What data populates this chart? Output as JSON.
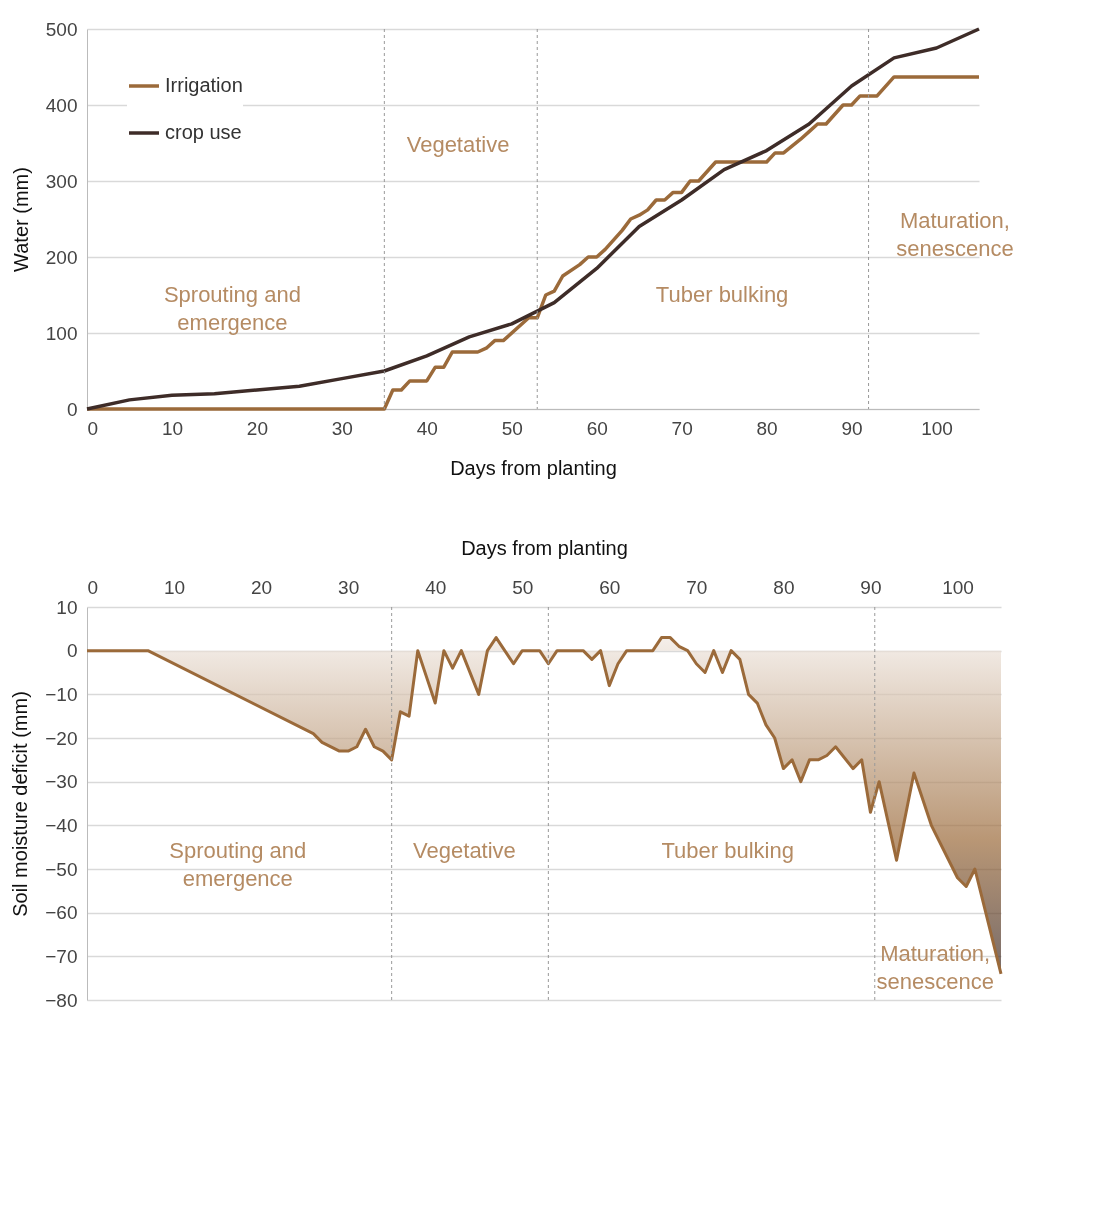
{
  "chart_data": [
    {
      "type": "line",
      "xlabel": "Days from planting",
      "ylabel": "Water (mm)",
      "xlim": [
        0,
        105
      ],
      "xticks": [
        0,
        10,
        20,
        30,
        40,
        50,
        60,
        70,
        80,
        90,
        100
      ],
      "ylim": [
        0,
        500
      ],
      "yticks": [
        0,
        100,
        200,
        300,
        400,
        500
      ],
      "grid": "y",
      "legend": "top left",
      "series": [
        {
          "name": "Irrigation",
          "color": "#9b6a3a",
          "x": [
            0,
            35,
            36,
            37,
            38,
            40,
            41,
            42,
            43,
            46,
            47,
            48,
            49,
            52,
            53,
            54,
            55,
            56,
            58,
            59,
            60,
            61,
            63,
            64,
            65,
            66,
            67,
            68,
            69,
            70,
            71,
            72,
            74,
            80,
            81,
            82,
            84,
            85,
            86,
            87,
            89,
            90,
            91,
            93,
            95,
            105
          ],
          "values": [
            0,
            0,
            25,
            25,
            37,
            37,
            55,
            55,
            75,
            75,
            80,
            90,
            90,
            120,
            120,
            150,
            155,
            175,
            190,
            200,
            200,
            210,
            235,
            250,
            255,
            262,
            275,
            275,
            285,
            285,
            300,
            300,
            325,
            325,
            337,
            337,
            355,
            365,
            375,
            375,
            400,
            400,
            412,
            412,
            437,
            437
          ]
        },
        {
          "name": "crop use",
          "color": "#3e2c28",
          "x": [
            0,
            5,
            10,
            15,
            20,
            25,
            30,
            35,
            40,
            45,
            50,
            55,
            60,
            65,
            70,
            75,
            80,
            85,
            90,
            95,
            100,
            105
          ],
          "values": [
            0,
            12,
            18,
            20,
            25,
            30,
            40,
            50,
            70,
            95,
            112,
            140,
            185,
            240,
            275,
            315,
            340,
            375,
            425,
            462,
            475,
            500
          ]
        }
      ],
      "ref_lines": [
        {
          "axis": "x",
          "value": 35,
          "line_style": "dashed"
        },
        {
          "axis": "x",
          "value": 53,
          "line_style": "dashed"
        },
        {
          "axis": "x",
          "value": 92,
          "line_style": "dashed"
        }
      ],
      "annotations": [
        "Sprouting and\nemergence",
        "Vegetative",
        "Tuber bulking",
        "Maturation,\nsenescence"
      ]
    },
    {
      "type": "area",
      "xlabel": "Days from planting",
      "ylabel": "Soil moisture deficit (mm)",
      "xlim": [
        0,
        105
      ],
      "xticks": [
        0,
        10,
        20,
        30,
        40,
        50,
        60,
        70,
        80,
        90,
        100
      ],
      "ylim": [
        -80,
        10
      ],
      "yticks": [
        10,
        0,
        -10,
        -20,
        -30,
        -40,
        -50,
        -60,
        -70,
        -80
      ],
      "grid": "y",
      "x": [
        0,
        7,
        26,
        27,
        29,
        30,
        31,
        32,
        33,
        34,
        35,
        36,
        37,
        38,
        39,
        40,
        41,
        42,
        43,
        45,
        46,
        47,
        49,
        50,
        52,
        53,
        54,
        57,
        58,
        59,
        60,
        61,
        62,
        65,
        66,
        67,
        68,
        69,
        70,
        71,
        72,
        73,
        74,
        75,
        76,
        77,
        78,
        79,
        80,
        81,
        82,
        83,
        84,
        85,
        86,
        88,
        89,
        90,
        91,
        93,
        95,
        97,
        98,
        100,
        101,
        102,
        105
      ],
      "series": [
        {
          "color": "#9b6a3a",
          "values": [
            0,
            0,
            -19,
            -21,
            -23,
            -23,
            -22,
            -18,
            -22,
            -23,
            -25,
            -14,
            -15,
            0,
            -6,
            -12,
            0,
            -4,
            0,
            -10,
            0,
            3,
            -3,
            0,
            0,
            -3,
            0,
            0,
            -2,
            0,
            -8,
            -3,
            0,
            0,
            3,
            3,
            1,
            0,
            -3,
            -5,
            0,
            -5,
            0,
            -2,
            -10,
            -12,
            -17,
            -20,
            -27,
            -25,
            -30,
            -25,
            -25,
            -24,
            -22,
            -27,
            -25,
            -37,
            -30,
            -48,
            -28,
            -40,
            -44,
            -52,
            -54,
            -50,
            -74
          ]
        }
      ],
      "ref_lines": [
        {
          "axis": "x",
          "value": 35,
          "line_style": "dashed"
        },
        {
          "axis": "x",
          "value": 53,
          "line_style": "dashed"
        },
        {
          "axis": "x",
          "value": 90.5,
          "line_style": "dashed"
        }
      ],
      "annotations": [
        "Sprouting and\nemergence",
        "Vegetative",
        "Tuber bulking",
        "Maturation,\nsenescence"
      ]
    }
  ]
}
